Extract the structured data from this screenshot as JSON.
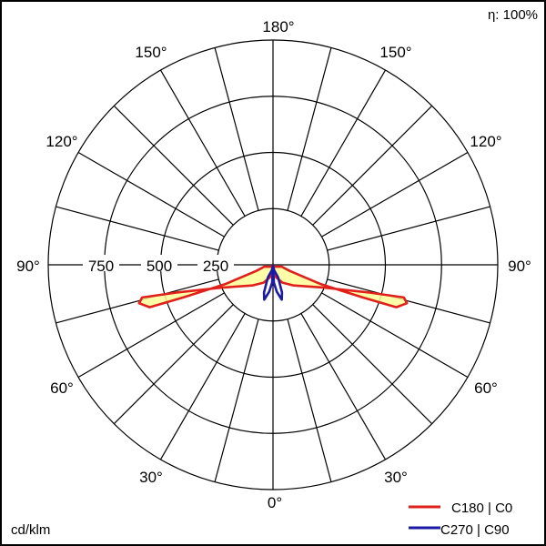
{
  "chart_data": {
    "type": "polar",
    "efficiency_label": "η: 100%",
    "unit_label": "cd/klm",
    "radial_ticks": [
      250,
      500,
      750
    ],
    "radial_max": 1000,
    "angle_labels": {
      "top": "180°",
      "upper": "150°",
      "mid_upper": "120°",
      "horizontal": "90°",
      "mid_lower": "60°",
      "lower": "30°",
      "bottom": "0°"
    },
    "radial_tick_labels": [
      "750",
      "500",
      "250"
    ],
    "series": [
      {
        "name": "C180 | C0",
        "color": "#e0201b",
        "fill": "#ffff99",
        "points": [
          {
            "gamma": -78,
            "cd": 40
          },
          {
            "gamma": -70,
            "cd": 80
          },
          {
            "gamma": -68,
            "cd": 230
          },
          {
            "gamma": -70,
            "cd": 420
          },
          {
            "gamma": -71,
            "cd": 580
          },
          {
            "gamma": -74,
            "cd": 620
          },
          {
            "gamma": -76,
            "cd": 600
          },
          {
            "gamma": -74,
            "cd": 450
          },
          {
            "gamma": -66,
            "cd": 250
          },
          {
            "gamma": -45,
            "cd": 130
          },
          {
            "gamma": -28,
            "cd": 90
          },
          {
            "gamma": -14,
            "cd": 58
          },
          {
            "gamma": -4,
            "cd": 16
          },
          {
            "gamma": 0,
            "cd": 5
          },
          {
            "gamma": 4,
            "cd": 16
          },
          {
            "gamma": 14,
            "cd": 58
          },
          {
            "gamma": 28,
            "cd": 90
          },
          {
            "gamma": 45,
            "cd": 130
          },
          {
            "gamma": 66,
            "cd": 250
          },
          {
            "gamma": 74,
            "cd": 450
          },
          {
            "gamma": 76,
            "cd": 600
          },
          {
            "gamma": 74,
            "cd": 620
          },
          {
            "gamma": 71,
            "cd": 580
          },
          {
            "gamma": 70,
            "cd": 420
          },
          {
            "gamma": 68,
            "cd": 230
          },
          {
            "gamma": 70,
            "cd": 80
          },
          {
            "gamma": 78,
            "cd": 40
          }
        ]
      },
      {
        "name": "C270 | C90",
        "color": "#1a1aa6",
        "fill": "none",
        "points": [
          {
            "gamma": -5,
            "cd": 8
          },
          {
            "gamma": -12,
            "cd": 25
          },
          {
            "gamma": -22,
            "cd": 60
          },
          {
            "gamma": -18,
            "cd": 130
          },
          {
            "gamma": -14,
            "cd": 160
          },
          {
            "gamma": -8,
            "cd": 120
          },
          {
            "gamma": -3,
            "cd": 80
          },
          {
            "gamma": 0,
            "cd": 5
          },
          {
            "gamma": 3,
            "cd": 80
          },
          {
            "gamma": 8,
            "cd": 120
          },
          {
            "gamma": 14,
            "cd": 160
          },
          {
            "gamma": 18,
            "cd": 130
          },
          {
            "gamma": 22,
            "cd": 60
          },
          {
            "gamma": 12,
            "cd": 25
          },
          {
            "gamma": 5,
            "cd": 8
          }
        ]
      }
    ]
  },
  "legend": {
    "items": [
      {
        "label": "C180 | C0",
        "color": "#e0201b"
      },
      {
        "label": "C270 | C90",
        "color": "#1a1aa6"
      }
    ]
  }
}
